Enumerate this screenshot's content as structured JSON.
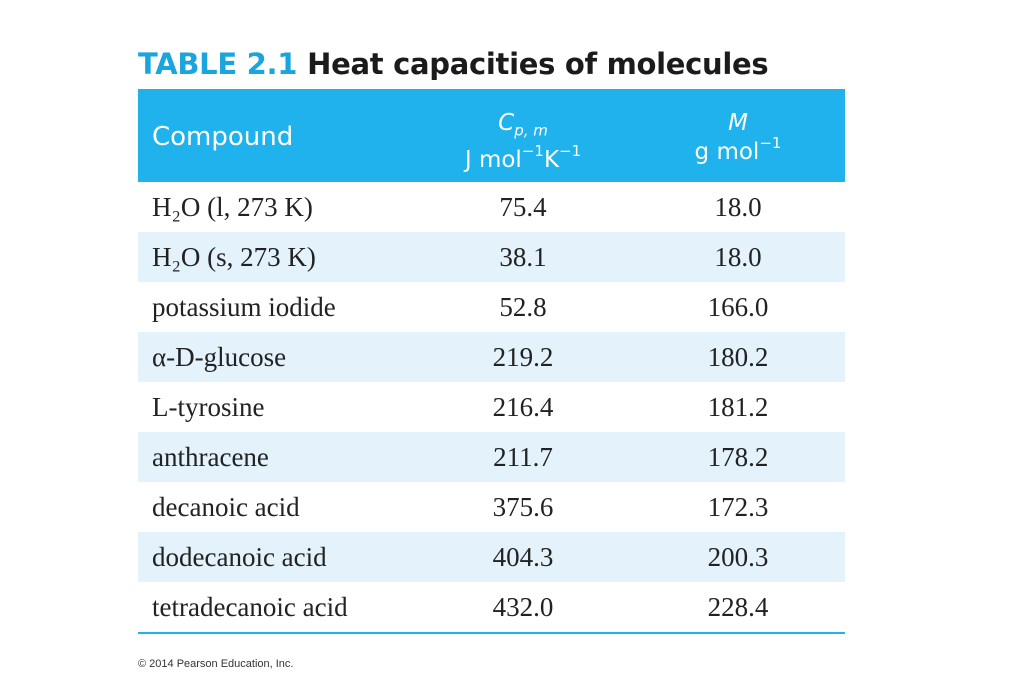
{
  "title": {
    "label": "TABLE 2.1",
    "text": "Heat capacities of molecules"
  },
  "header": {
    "compound": "Compound",
    "cp_symbol": "C",
    "cp_subscript": "p, m",
    "cp_unit_a": "J mol",
    "cp_unit_a_exp": "−1",
    "cp_unit_b": "K",
    "cp_unit_b_exp": "−1",
    "m_symbol": "M",
    "m_unit": "g mol",
    "m_unit_exp": "−1"
  },
  "rows": [
    {
      "compound": "H₂O (l, 273 K)",
      "cp": "75.4",
      "m": "18.0"
    },
    {
      "compound": "H₂O (s, 273 K)",
      "cp": "38.1",
      "m": "18.0"
    },
    {
      "compound": "potassium iodide",
      "cp": "52.8",
      "m": "166.0"
    },
    {
      "compound": "α-D-glucose",
      "cp": "219.2",
      "m": "180.2"
    },
    {
      "compound": "L-tyrosine",
      "cp": "216.4",
      "m": "181.2"
    },
    {
      "compound": "anthracene",
      "cp": "211.7",
      "m": "178.2"
    },
    {
      "compound": "decanoic acid",
      "cp": "375.6",
      "m": "172.3"
    },
    {
      "compound": "dodecanoic acid",
      "cp": "404.3",
      "m": "200.3"
    },
    {
      "compound": "tetradecanoic acid",
      "cp": "432.0",
      "m": "228.4"
    }
  ],
  "footer": {
    "copyright": "© 2014 Pearson Education, Inc."
  },
  "colors": {
    "accent": "#1fb2ec",
    "title_label": "#1aa6dd",
    "row_shade": "#e3f2fb"
  }
}
